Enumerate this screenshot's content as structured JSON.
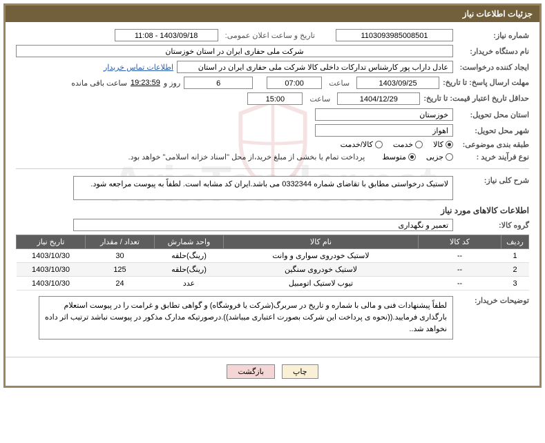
{
  "header": {
    "title": "جزئیات اطلاعات نیاز"
  },
  "fields": {
    "need_no_label": "شماره نیاز:",
    "need_no": "1103093985008501",
    "announce_label": "تاریخ و ساعت اعلان عمومی:",
    "announce_value": "1403/09/18 - 11:08",
    "buyer_org_label": "نام دستگاه خریدار:",
    "buyer_org": "شرکت ملی حفاری ایران در استان خوزستان",
    "requester_label": "ایجاد کننده درخواست:",
    "requester": "عادل داراب پور کارشناس تدارکات داخلی کالا شرکت ملی حفاری ایران در استان",
    "contact_link": "اطلاعات تماس خریدار",
    "deadline_label": "مهلت ارسال پاسخ: تا تاریخ:",
    "deadline_date": "1403/09/25",
    "time_word": "ساعت",
    "deadline_time": "07:00",
    "days_remaining": "6",
    "days_word": "روز و",
    "hours_remaining": "19:23:59",
    "remaining_word": "ساعت باقی مانده",
    "validity_label": "حداقل تاریخ اعتبار قیمت: تا تاریخ:",
    "validity_date": "1404/12/29",
    "validity_time": "15:00",
    "province_label": "استان محل تحویل:",
    "province": "خوزستان",
    "city_label": "شهر محل تحویل:",
    "city": "اهواز",
    "category_label": "طبقه بندی موضوعی:",
    "cat_goods": "کالا",
    "cat_service": "خدمت",
    "cat_goods_service": "کالا/خدمت",
    "process_label": "نوع فرآیند خرید :",
    "proc_partial": "جزیی",
    "proc_medium": "متوسط",
    "process_note": "پرداخت تمام یا بخشی از مبلغ خرید،از محل \"اسناد خزانه اسلامی\" خواهد بود.",
    "desc_label": "شرح کلی نیاز:",
    "desc_text": "لاستیک درخواستی مطابق با تقاضای شماره 0332344 می باشد.ایران کد مشابه است. لطفاً به پیوست مراجعه شود.",
    "goods_section": "اطلاعات کالاهای مورد نیاز",
    "group_label": "گروه کالا:",
    "group_value": "تعمیر و نگهداری",
    "explain_label": "توضیحات خریدار:",
    "explain_text": "لطفاً پیشنهادات فنی و مالی با شماره و تاریخ در سربرگ(شرکت یا فروشگاه) و گواهی تطابق و غرامت را در پیوست استعلام بارگذاری فرمایید.((نحوه ی پرداخت این شرکت بصورت اعتباری میباشد)).درصورتیکه مدارک مذکور در پیوست نباشد ترتیب اثر داده نخواهد شد.."
  },
  "table": {
    "columns": [
      "ردیف",
      "کد کالا",
      "نام کالا",
      "واحد شمارش",
      "تعداد / مقدار",
      "تاریخ نیاز"
    ],
    "rows": [
      [
        "1",
        "--",
        "لاستیک خودروی سواری و وانت",
        "(رینگ)حلقه",
        "30",
        "1403/10/30"
      ],
      [
        "2",
        "--",
        "لاستیک خودروی سنگین",
        "(رینگ)حلقه",
        "125",
        "1403/10/30"
      ],
      [
        "3",
        "--",
        "تیوب لاستیک اتومبیل",
        "عدد",
        "24",
        "1403/10/30"
      ]
    ]
  },
  "buttons": {
    "print": "چاپ",
    "back": "بازگشت"
  },
  "watermark": "AriaTender.net"
}
